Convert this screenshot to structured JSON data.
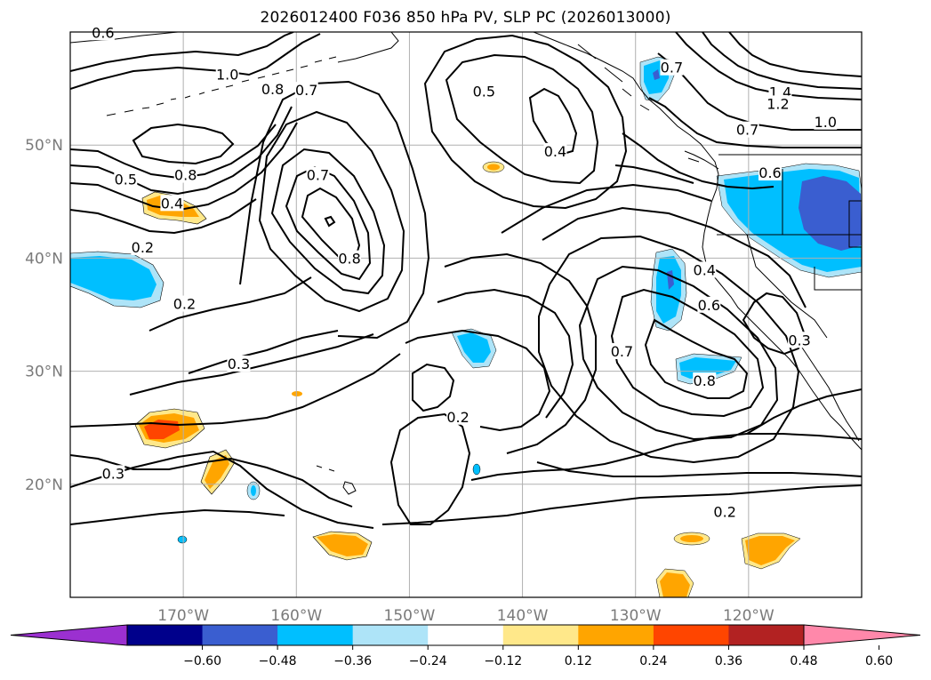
{
  "title": "2026012400 F036 850 hPa PV, SLP PC (2026013000)",
  "map": {
    "projection": "PlateCarree",
    "lon_range": [
      -180,
      -110
    ],
    "lat_range": [
      10,
      60
    ],
    "lat_ticks": [
      {
        "value": 20,
        "label": "20°N"
      },
      {
        "value": 30,
        "label": "30°N"
      },
      {
        "value": 40,
        "label": "40°N"
      },
      {
        "value": 50,
        "label": "50°N"
      }
    ],
    "lon_ticks": [
      {
        "value": -170,
        "label": "170°W"
      },
      {
        "value": -160,
        "label": "160°W"
      },
      {
        "value": -150,
        "label": "150°W"
      },
      {
        "value": -140,
        "label": "140°W"
      },
      {
        "value": -130,
        "label": "130°W"
      },
      {
        "value": -120,
        "label": "120°W"
      }
    ],
    "grid": true,
    "contour_labels": [
      {
        "text": "0.6",
        "lon": -177.1,
        "lat": 59.9
      },
      {
        "text": "1.0",
        "lon": -166.1,
        "lat": 56.2
      },
      {
        "text": "0.8",
        "lon": -162.1,
        "lat": 54.9
      },
      {
        "text": "0.7",
        "lon": -159.1,
        "lat": 54.8
      },
      {
        "text": "0.5",
        "lon": -143.4,
        "lat": 54.7
      },
      {
        "text": "0.7",
        "lon": -126.8,
        "lat": 56.8
      },
      {
        "text": "1.4",
        "lon": -117.2,
        "lat": 54.6
      },
      {
        "text": "1.2",
        "lon": -117.4,
        "lat": 53.6
      },
      {
        "text": "1.0",
        "lon": -113.2,
        "lat": 52.0
      },
      {
        "text": "0.7",
        "lon": -120.1,
        "lat": 51.3
      },
      {
        "text": "0.4",
        "lon": -137.1,
        "lat": 49.4
      },
      {
        "text": "0.8",
        "lon": -169.8,
        "lat": 47.3
      },
      {
        "text": "0.5",
        "lon": -175.1,
        "lat": 46.9
      },
      {
        "text": "0.7",
        "lon": -158.1,
        "lat": 47.3
      },
      {
        "text": "0.6",
        "lon": -118.1,
        "lat": 47.5
      },
      {
        "text": "0.4",
        "lon": -171.0,
        "lat": 44.8
      },
      {
        "text": "0.2",
        "lon": -173.6,
        "lat": 40.9
      },
      {
        "text": "0.8",
        "lon": -155.3,
        "lat": 39.9
      },
      {
        "text": "0.4",
        "lon": -123.9,
        "lat": 38.9
      },
      {
        "text": "0.2",
        "lon": -169.9,
        "lat": 35.9
      },
      {
        "text": "0.6",
        "lon": -123.5,
        "lat": 35.8
      },
      {
        "text": "0.3",
        "lon": -115.5,
        "lat": 32.7
      },
      {
        "text": "0.7",
        "lon": -131.2,
        "lat": 31.7
      },
      {
        "text": "0.3",
        "lon": -165.1,
        "lat": 30.6
      },
      {
        "text": "0.8",
        "lon": -123.9,
        "lat": 29.1
      },
      {
        "text": "0.2",
        "lon": -145.7,
        "lat": 25.9
      },
      {
        "text": "0.3",
        "lon": -176.2,
        "lat": 20.9
      },
      {
        "text": "0.2",
        "lon": -122.1,
        "lat": 17.5
      }
    ]
  },
  "colorbar": {
    "ticks": [
      "−0.60",
      "−0.48",
      "−0.36",
      "−0.24",
      "−0.12",
      "0.12",
      "0.24",
      "0.36",
      "0.48",
      "0.60"
    ],
    "colors": [
      "#9b30d0",
      "#00008b",
      "#3a5ed0",
      "#00bfff",
      "#aee4f8",
      "#ffffff",
      "#ffe88a",
      "#ffa500",
      "#ff4500",
      "#b22222",
      "#ff88aa"
    ],
    "extend": "both"
  }
}
